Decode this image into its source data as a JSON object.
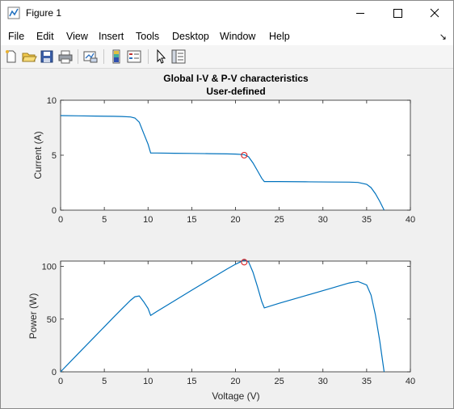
{
  "window": {
    "title": "Figure 1"
  },
  "menu": [
    "File",
    "Edit",
    "View",
    "Insert",
    "Tools",
    "Desktop",
    "Window",
    "Help"
  ],
  "dock_arrow": "↘",
  "toolbar_icons": [
    "new-figure-icon",
    "open-file-icon",
    "save-icon",
    "print-icon",
    "link-plot-icon",
    "insert-colorbar-icon",
    "insert-legend-icon",
    "pointer-icon",
    "property-inspector-icon"
  ],
  "colors": {
    "line": "#0072BD",
    "marker": "#D92020",
    "axes_bg": "#ffffff",
    "figure_bg": "#f0f0f0"
  },
  "chart_data": [
    {
      "type": "line",
      "title": [
        "Global I-V & P-V characteristics",
        "User-defined"
      ],
      "xlabel": "",
      "ylabel": "Current (A)",
      "xlim": [
        0,
        40
      ],
      "ylim": [
        0,
        10
      ],
      "xticks": [
        0,
        5,
        10,
        15,
        20,
        25,
        30,
        35,
        40
      ],
      "yticks": [
        0,
        5,
        10
      ],
      "grid": false,
      "series": [
        {
          "x": [
            0,
            2,
            4,
            6,
            7,
            8,
            8.5,
            9,
            9.5,
            10,
            10.3,
            11,
            13,
            15,
            17,
            19,
            20,
            21,
            21.5,
            22,
            22.5,
            23,
            23.3,
            25,
            28,
            31,
            33,
            34,
            35,
            35.5,
            36,
            36.5,
            37.0
          ],
          "y": [
            8.6,
            8.58,
            8.56,
            8.54,
            8.52,
            8.48,
            8.38,
            8.0,
            7.0,
            6.0,
            5.2,
            5.2,
            5.18,
            5.16,
            5.14,
            5.12,
            5.1,
            5.05,
            4.85,
            4.3,
            3.6,
            2.9,
            2.6,
            2.6,
            2.58,
            2.56,
            2.55,
            2.52,
            2.35,
            2.05,
            1.5,
            0.8,
            0.0
          ]
        }
      ],
      "marker": {
        "x": 21.0,
        "y": 5.0
      }
    },
    {
      "type": "line",
      "title": "",
      "xlabel": "Voltage (V)",
      "ylabel": "Power (W)",
      "xlim": [
        0,
        40
      ],
      "ylim": [
        0,
        105
      ],
      "xticks": [
        0,
        5,
        10,
        15,
        20,
        25,
        30,
        35,
        40
      ],
      "yticks": [
        0,
        50,
        100
      ],
      "grid": false,
      "series": [
        {
          "x": [
            0,
            2,
            4,
            6,
            7,
            8,
            8.5,
            9,
            9.5,
            10,
            10.3,
            11,
            13,
            15,
            17,
            19,
            20,
            21,
            21.5,
            22,
            22.5,
            23,
            23.3,
            25,
            28,
            31,
            33,
            34,
            35,
            35.5,
            36,
            36.5,
            37.0
          ],
          "y": [
            0,
            17.2,
            34.2,
            51.2,
            59.6,
            67.8,
            71.2,
            72.0,
            66.5,
            60.0,
            53.5,
            57.2,
            67.3,
            77.4,
            87.4,
            97.3,
            102.0,
            106.0,
            104.3,
            94.6,
            81.0,
            66.7,
            60.6,
            65.0,
            72.2,
            79.4,
            84.2,
            85.7,
            82.3,
            72.8,
            54.0,
            29.2,
            0.0
          ]
        }
      ],
      "marker": {
        "x": 21.0,
        "y": 104.0
      }
    }
  ]
}
